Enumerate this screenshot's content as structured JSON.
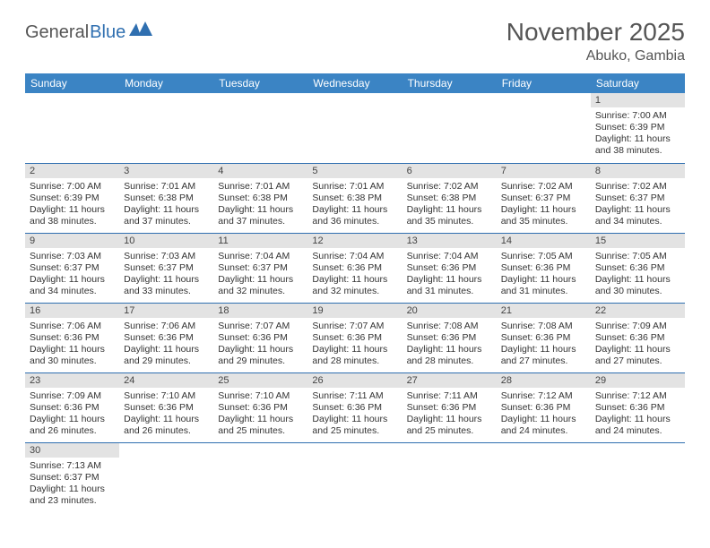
{
  "logo": {
    "text1": "General",
    "text2": "Blue"
  },
  "title": "November 2025",
  "location": "Abuko, Gambia",
  "colors": {
    "header_bg": "#3b84c4",
    "daynum_bg": "#e3e3e3",
    "rule": "#2f6fb0"
  },
  "weekdays": [
    "Sunday",
    "Monday",
    "Tuesday",
    "Wednesday",
    "Thursday",
    "Friday",
    "Saturday"
  ],
  "weeks": [
    [
      null,
      null,
      null,
      null,
      null,
      null,
      {
        "n": "1",
        "sr": "Sunrise: 7:00 AM",
        "ss": "Sunset: 6:39 PM",
        "d1": "Daylight: 11 hours",
        "d2": "and 38 minutes."
      }
    ],
    [
      {
        "n": "2",
        "sr": "Sunrise: 7:00 AM",
        "ss": "Sunset: 6:39 PM",
        "d1": "Daylight: 11 hours",
        "d2": "and 38 minutes."
      },
      {
        "n": "3",
        "sr": "Sunrise: 7:01 AM",
        "ss": "Sunset: 6:38 PM",
        "d1": "Daylight: 11 hours",
        "d2": "and 37 minutes."
      },
      {
        "n": "4",
        "sr": "Sunrise: 7:01 AM",
        "ss": "Sunset: 6:38 PM",
        "d1": "Daylight: 11 hours",
        "d2": "and 37 minutes."
      },
      {
        "n": "5",
        "sr": "Sunrise: 7:01 AM",
        "ss": "Sunset: 6:38 PM",
        "d1": "Daylight: 11 hours",
        "d2": "and 36 minutes."
      },
      {
        "n": "6",
        "sr": "Sunrise: 7:02 AM",
        "ss": "Sunset: 6:38 PM",
        "d1": "Daylight: 11 hours",
        "d2": "and 35 minutes."
      },
      {
        "n": "7",
        "sr": "Sunrise: 7:02 AM",
        "ss": "Sunset: 6:37 PM",
        "d1": "Daylight: 11 hours",
        "d2": "and 35 minutes."
      },
      {
        "n": "8",
        "sr": "Sunrise: 7:02 AM",
        "ss": "Sunset: 6:37 PM",
        "d1": "Daylight: 11 hours",
        "d2": "and 34 minutes."
      }
    ],
    [
      {
        "n": "9",
        "sr": "Sunrise: 7:03 AM",
        "ss": "Sunset: 6:37 PM",
        "d1": "Daylight: 11 hours",
        "d2": "and 34 minutes."
      },
      {
        "n": "10",
        "sr": "Sunrise: 7:03 AM",
        "ss": "Sunset: 6:37 PM",
        "d1": "Daylight: 11 hours",
        "d2": "and 33 minutes."
      },
      {
        "n": "11",
        "sr": "Sunrise: 7:04 AM",
        "ss": "Sunset: 6:37 PM",
        "d1": "Daylight: 11 hours",
        "d2": "and 32 minutes."
      },
      {
        "n": "12",
        "sr": "Sunrise: 7:04 AM",
        "ss": "Sunset: 6:36 PM",
        "d1": "Daylight: 11 hours",
        "d2": "and 32 minutes."
      },
      {
        "n": "13",
        "sr": "Sunrise: 7:04 AM",
        "ss": "Sunset: 6:36 PM",
        "d1": "Daylight: 11 hours",
        "d2": "and 31 minutes."
      },
      {
        "n": "14",
        "sr": "Sunrise: 7:05 AM",
        "ss": "Sunset: 6:36 PM",
        "d1": "Daylight: 11 hours",
        "d2": "and 31 minutes."
      },
      {
        "n": "15",
        "sr": "Sunrise: 7:05 AM",
        "ss": "Sunset: 6:36 PM",
        "d1": "Daylight: 11 hours",
        "d2": "and 30 minutes."
      }
    ],
    [
      {
        "n": "16",
        "sr": "Sunrise: 7:06 AM",
        "ss": "Sunset: 6:36 PM",
        "d1": "Daylight: 11 hours",
        "d2": "and 30 minutes."
      },
      {
        "n": "17",
        "sr": "Sunrise: 7:06 AM",
        "ss": "Sunset: 6:36 PM",
        "d1": "Daylight: 11 hours",
        "d2": "and 29 minutes."
      },
      {
        "n": "18",
        "sr": "Sunrise: 7:07 AM",
        "ss": "Sunset: 6:36 PM",
        "d1": "Daylight: 11 hours",
        "d2": "and 29 minutes."
      },
      {
        "n": "19",
        "sr": "Sunrise: 7:07 AM",
        "ss": "Sunset: 6:36 PM",
        "d1": "Daylight: 11 hours",
        "d2": "and 28 minutes."
      },
      {
        "n": "20",
        "sr": "Sunrise: 7:08 AM",
        "ss": "Sunset: 6:36 PM",
        "d1": "Daylight: 11 hours",
        "d2": "and 28 minutes."
      },
      {
        "n": "21",
        "sr": "Sunrise: 7:08 AM",
        "ss": "Sunset: 6:36 PM",
        "d1": "Daylight: 11 hours",
        "d2": "and 27 minutes."
      },
      {
        "n": "22",
        "sr": "Sunrise: 7:09 AM",
        "ss": "Sunset: 6:36 PM",
        "d1": "Daylight: 11 hours",
        "d2": "and 27 minutes."
      }
    ],
    [
      {
        "n": "23",
        "sr": "Sunrise: 7:09 AM",
        "ss": "Sunset: 6:36 PM",
        "d1": "Daylight: 11 hours",
        "d2": "and 26 minutes."
      },
      {
        "n": "24",
        "sr": "Sunrise: 7:10 AM",
        "ss": "Sunset: 6:36 PM",
        "d1": "Daylight: 11 hours",
        "d2": "and 26 minutes."
      },
      {
        "n": "25",
        "sr": "Sunrise: 7:10 AM",
        "ss": "Sunset: 6:36 PM",
        "d1": "Daylight: 11 hours",
        "d2": "and 25 minutes."
      },
      {
        "n": "26",
        "sr": "Sunrise: 7:11 AM",
        "ss": "Sunset: 6:36 PM",
        "d1": "Daylight: 11 hours",
        "d2": "and 25 minutes."
      },
      {
        "n": "27",
        "sr": "Sunrise: 7:11 AM",
        "ss": "Sunset: 6:36 PM",
        "d1": "Daylight: 11 hours",
        "d2": "and 25 minutes."
      },
      {
        "n": "28",
        "sr": "Sunrise: 7:12 AM",
        "ss": "Sunset: 6:36 PM",
        "d1": "Daylight: 11 hours",
        "d2": "and 24 minutes."
      },
      {
        "n": "29",
        "sr": "Sunrise: 7:12 AM",
        "ss": "Sunset: 6:36 PM",
        "d1": "Daylight: 11 hours",
        "d2": "and 24 minutes."
      }
    ],
    [
      {
        "n": "30",
        "sr": "Sunrise: 7:13 AM",
        "ss": "Sunset: 6:37 PM",
        "d1": "Daylight: 11 hours",
        "d2": "and 23 minutes."
      },
      null,
      null,
      null,
      null,
      null,
      null
    ]
  ]
}
